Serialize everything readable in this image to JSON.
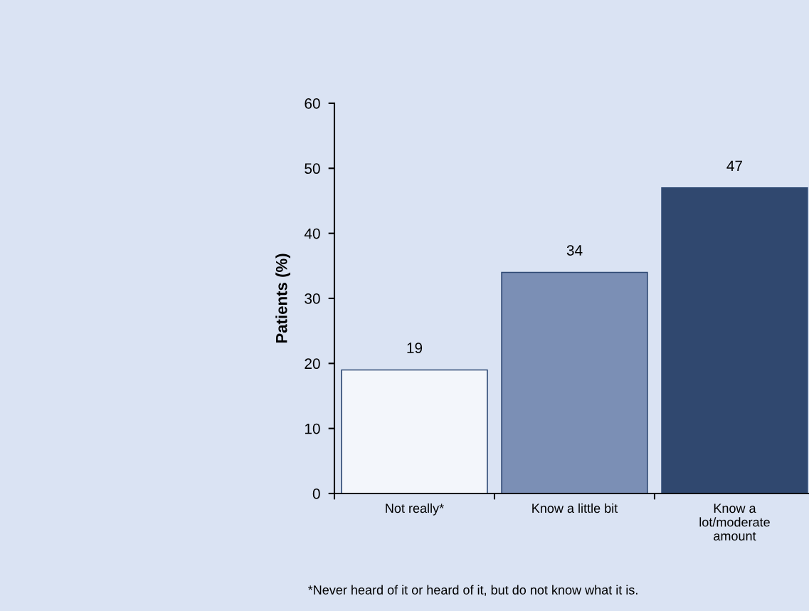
{
  "chart_data": {
    "type": "bar",
    "ylabel": "Patients (%)",
    "categories": [
      "Not really*",
      "Know a little bit",
      "Know a\nlot/moderate\namount"
    ],
    "values": [
      19,
      34,
      47
    ],
    "colors": [
      "#f3f6fb",
      "#7b8fb5",
      "#30486f"
    ],
    "ylim": [
      0,
      60
    ],
    "yticks": [
      0,
      10,
      20,
      30,
      40,
      50,
      60
    ],
    "data_labels": true,
    "grid": false,
    "legend": false,
    "annotations": [
      "*Never heard of it or heard of it, but do not know what it is."
    ]
  }
}
